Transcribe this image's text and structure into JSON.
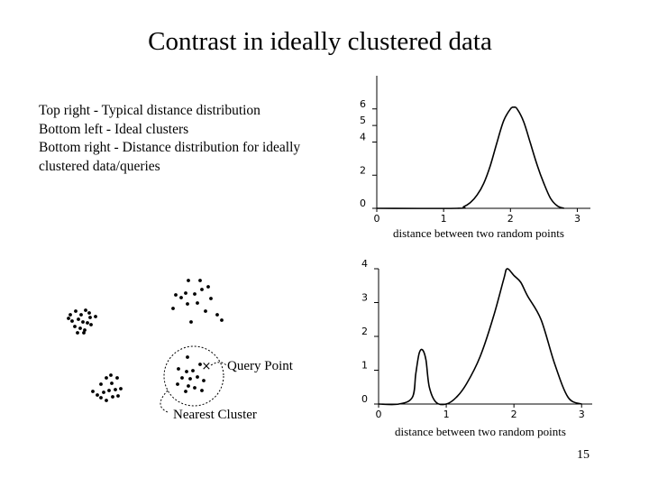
{
  "slide": {
    "title": "Contrast in ideally clustered data",
    "caption_lines": [
      "Top right - Typical distance distribution",
      "Bottom left - Ideal clusters",
      "Bottom right - Distance distribution for ideally",
      "clustered data/queries"
    ],
    "page_number": "15"
  },
  "scatter": {
    "query_label": "Query Point",
    "nearest_label": "Nearest Cluster",
    "query_marker": "×"
  },
  "chart_data": [
    {
      "type": "line",
      "x": [
        0,
        1.2,
        1.3,
        1.4,
        1.5,
        1.6,
        1.7,
        1.8,
        1.9,
        2.0,
        2.05,
        2.1,
        2.2,
        2.3,
        2.4,
        2.5,
        2.6,
        2.7,
        2.8
      ],
      "y": [
        0,
        0,
        0.1,
        0.35,
        0.8,
        1.5,
        2.6,
        4.0,
        5.3,
        6.0,
        6.1,
        6.0,
        5.2,
        3.9,
        2.6,
        1.5,
        0.6,
        0.15,
        0
      ],
      "xlabel": "distance between two random points",
      "ylabel": "",
      "xlim": [
        0,
        3.25
      ],
      "ylim": [
        0,
        8
      ],
      "x_ticks": [
        "0",
        "1",
        "2",
        "3"
      ],
      "y_ticks": [
        "0",
        "2",
        "4",
        "5",
        "6"
      ]
    },
    {
      "type": "line",
      "x": [
        0,
        0.3,
        0.5,
        0.55,
        0.6,
        0.65,
        0.7,
        0.75,
        0.85,
        1.0,
        1.15,
        1.3,
        1.5,
        1.7,
        1.85,
        1.9,
        2.0,
        2.1,
        2.2,
        2.4,
        2.6,
        2.8,
        3.0
      ],
      "y": [
        0,
        0,
        0.2,
        0.9,
        1.5,
        1.6,
        1.3,
        0.5,
        0.05,
        0,
        0.2,
        0.6,
        1.4,
        2.6,
        3.7,
        4.0,
        3.8,
        3.6,
        3.2,
        2.5,
        1.2,
        0.2,
        0
      ],
      "xlabel": "distance between two random points",
      "ylabel": "",
      "xlim": [
        0,
        3.25
      ],
      "ylim": [
        0,
        4
      ],
      "x_ticks": [
        "0",
        "1",
        "2",
        "3"
      ],
      "y_ticks": [
        "0",
        "1",
        "2",
        "3",
        "4"
      ]
    }
  ]
}
